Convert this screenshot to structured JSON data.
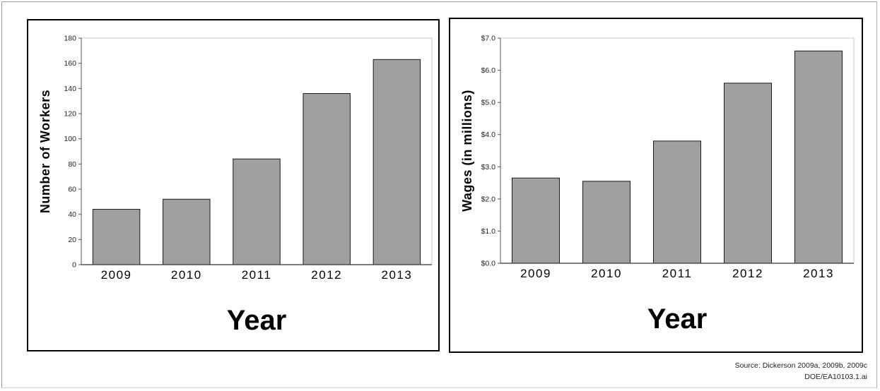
{
  "chart_data": [
    {
      "type": "bar",
      "categories": [
        "2009",
        "2010",
        "2011",
        "2012",
        "2013"
      ],
      "values": [
        44,
        52,
        84,
        136,
        163
      ],
      "xlabel": "Year",
      "ylabel": "Number of Workers",
      "ylim": [
        0,
        180
      ],
      "yticks": [
        0,
        20,
        40,
        60,
        80,
        100,
        120,
        140,
        160,
        180
      ],
      "ytick_labels": [
        "0",
        "20",
        "40",
        "60",
        "80",
        "100",
        "120",
        "140",
        "160",
        "180"
      ],
      "bar_color": "#a0a0a0",
      "grid": false
    },
    {
      "type": "bar",
      "categories": [
        "2009",
        "2010",
        "2011",
        "2012",
        "2013"
      ],
      "values": [
        2.65,
        2.55,
        3.8,
        5.6,
        6.6
      ],
      "xlabel": "Year",
      "ylabel": "Wages (in millions)",
      "ylim": [
        0,
        7
      ],
      "yticks": [
        0,
        1,
        2,
        3,
        4,
        5,
        6,
        7
      ],
      "ytick_labels": [
        "$0.0",
        "$1.0",
        "$2.0",
        "$3.0",
        "$4.0",
        "$5.0",
        "$6.0",
        "$7.0"
      ],
      "bar_color": "#a0a0a0",
      "grid": false
    }
  ],
  "footer": {
    "source": "Source:  Dickerson 2009a, 2009b, 2009c",
    "figure_id": "DOE/EA10103.1.ai"
  }
}
